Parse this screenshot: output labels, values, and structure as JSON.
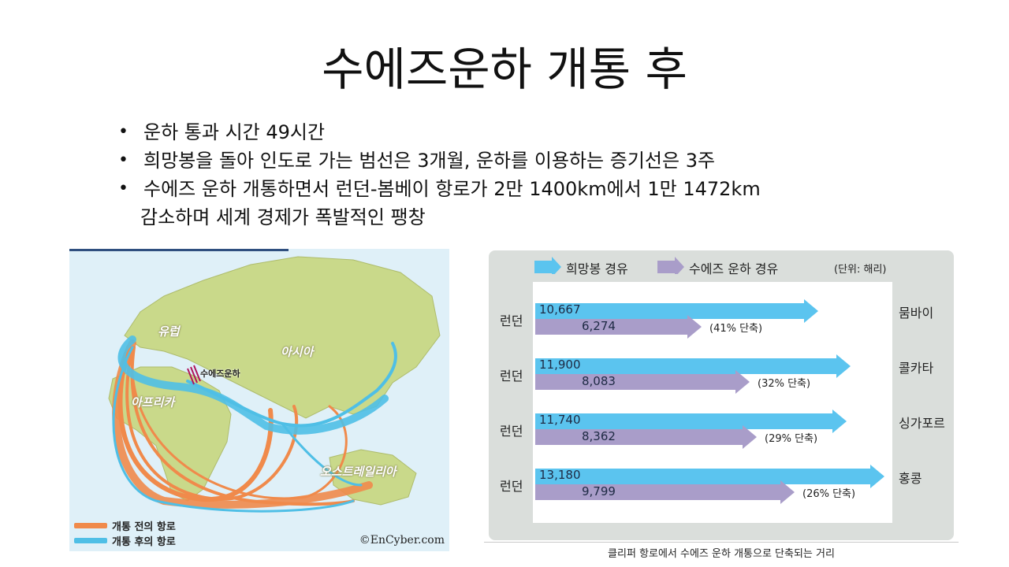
{
  "title": "수에즈운하 개통 후",
  "bullets": [
    "운하 통과 시간 49시간",
    "희망봉을 돌아 인도로 가는 범선은 3개월, 운하를 이용하는 증기선은 3주",
    "수에즈 운하 개통하면서 런던-봄베이 항로가 2만 1400km에서 1만 1472km",
    "감소하며 세계 경제가 폭발적인 팽창"
  ],
  "map": {
    "labels": {
      "europe": "유럽",
      "asia": "아시아",
      "africa": "아프리카",
      "australia": "오스트레일리아",
      "canal": "수에즈운하"
    },
    "legend": {
      "before": "개통 전의 항로",
      "after": "개통 후의 항로",
      "before_color": "#f08a4b",
      "after_color": "#4fbfe6"
    },
    "copyright": "©EnCyber.com"
  },
  "chart_data": {
    "type": "bar",
    "legend": {
      "cape": "희망봉 경유",
      "suez": "수에즈 운하 경유",
      "unit": "(단위: 해리)"
    },
    "colors": {
      "cape": "#5bc4ef",
      "suez": "#a99dc9"
    },
    "max": 13180,
    "rows": [
      {
        "origin": "런던",
        "dest": "뭄바이",
        "cape": 10667,
        "cape_label": "10,667",
        "suez": 6274,
        "suez_label": "6,274",
        "pct": "(41% 단축)"
      },
      {
        "origin": "런던",
        "dest": "콜카타",
        "cape": 11900,
        "cape_label": "11,900",
        "suez": 8083,
        "suez_label": "8,083",
        "pct": "(32% 단축)"
      },
      {
        "origin": "런던",
        "dest": "싱가포르",
        "cape": 11740,
        "cape_label": "11,740",
        "suez": 8362,
        "suez_label": "8,362",
        "pct": "(29% 단축)"
      },
      {
        "origin": "런던",
        "dest": "홍콩",
        "cape": 13180,
        "cape_label": "13,180",
        "suez": 9799,
        "suez_label": "9,799",
        "pct": "(26% 단축)"
      }
    ],
    "caption": "클리퍼 항로에서 수에즈 운하 개통으로 단축되는 거리"
  }
}
